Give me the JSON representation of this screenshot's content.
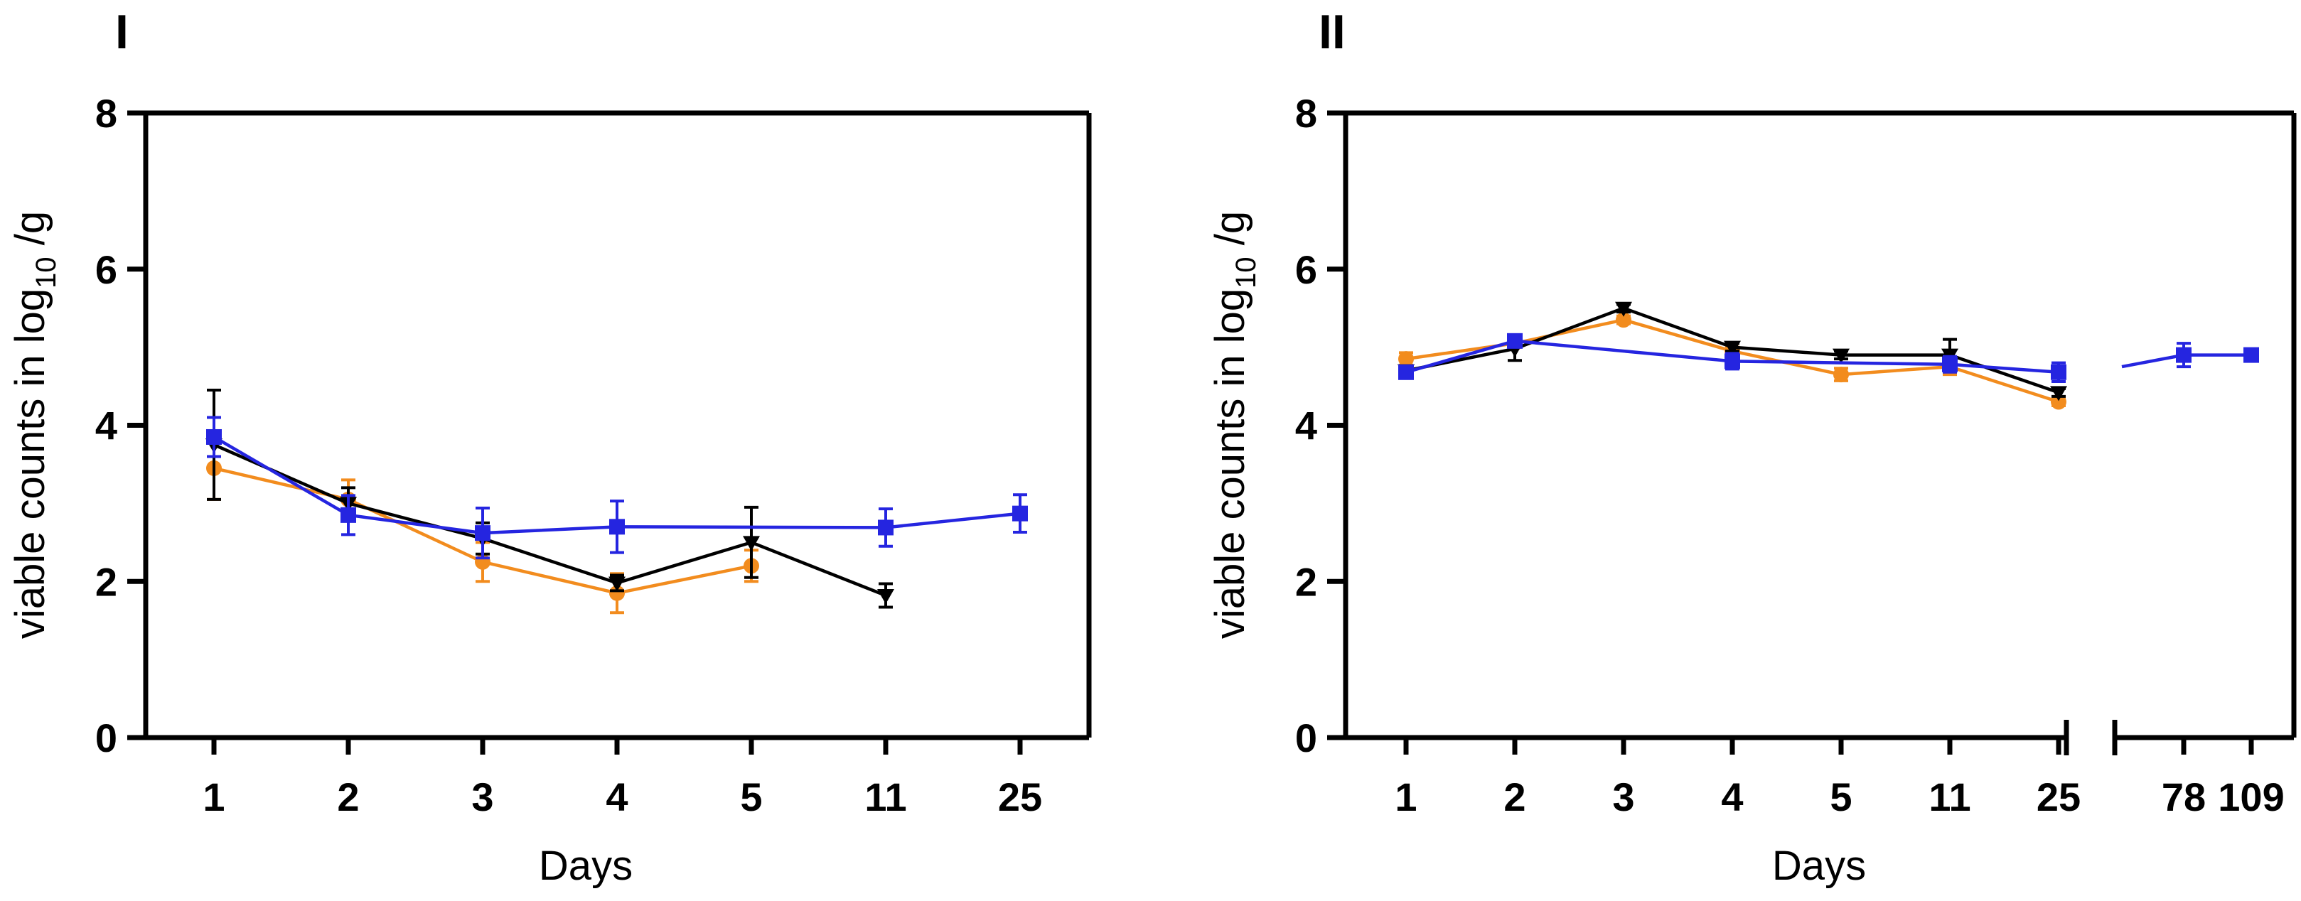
{
  "series_colors": {
    "orange": "#F28C1E",
    "black": "#000000",
    "blue": "#2525E0"
  },
  "chart_data": [
    {
      "type": "line",
      "panel_label": "I",
      "xlabel": "Days",
      "ylabel_main": "viable counts in log",
      "ylabel_sub": "10",
      "ylabel_end": " /g",
      "ylim": [
        0,
        8
      ],
      "yticks": [
        0,
        2,
        4,
        6,
        8
      ],
      "ytick_labels": [
        "0",
        "2",
        "4",
        "6",
        "8"
      ],
      "categories": [
        "1",
        "2",
        "3",
        "4",
        "5",
        "11",
        "25"
      ],
      "series": [
        {
          "name": "orange",
          "color": "#F28C1E",
          "marker": "circle",
          "values": [
            3.45,
            3.05,
            2.25,
            1.85,
            2.2,
            null,
            null
          ],
          "errors": [
            0.4,
            0.25,
            0.25,
            0.25,
            0.2,
            null,
            null
          ]
        },
        {
          "name": "black",
          "color": "#000000",
          "marker": "triangle-down",
          "values": [
            3.75,
            3.0,
            2.55,
            1.98,
            2.5,
            1.82,
            null
          ],
          "errors": [
            0.7,
            0.2,
            0.2,
            0.1,
            0.45,
            0.15,
            null
          ]
        },
        {
          "name": "blue",
          "color": "#2525E0",
          "marker": "square",
          "values": [
            3.85,
            2.85,
            2.62,
            2.7,
            null,
            2.69,
            2.87
          ],
          "errors": [
            0.25,
            0.25,
            0.32,
            0.33,
            null,
            0.24,
            0.24
          ]
        }
      ],
      "extra_points": [
        {
          "series": "blue",
          "x_between": [
            "5",
            "11"
          ],
          "value": 2.7
        }
      ]
    },
    {
      "type": "line",
      "panel_label": "II",
      "xlabel": "Days",
      "ylabel_main": "viable counts in log",
      "ylabel_sub": "10",
      "ylabel_end": " /g",
      "ylim": [
        0,
        8
      ],
      "yticks": [
        0,
        2,
        4,
        6,
        8
      ],
      "ytick_labels": [
        "0",
        "2",
        "4",
        "6",
        "8"
      ],
      "categories": [
        "1",
        "2",
        "3",
        "4",
        "5",
        "11",
        "25"
      ],
      "categories_break": [
        "78",
        "109"
      ],
      "axis_break": true,
      "series": [
        {
          "name": "orange",
          "color": "#F28C1E",
          "marker": "circle",
          "values": [
            4.85,
            5.05,
            5.35,
            4.95,
            4.65,
            4.75,
            4.3
          ],
          "errors": [
            0.08,
            0.05,
            0.05,
            0.05,
            0.08,
            0.1,
            0.05
          ]
        },
        {
          "name": "black",
          "color": "#000000",
          "marker": "triangle-down",
          "values": [
            4.7,
            4.98,
            5.5,
            5.0,
            4.9,
            4.9,
            4.42
          ],
          "errors": [
            0.05,
            0.15,
            0.05,
            0.05,
            0.05,
            0.2,
            0.05
          ]
        },
        {
          "name": "blue",
          "color": "#2525E0",
          "marker": "square",
          "values": [
            4.68,
            5.08,
            null,
            4.82,
            null,
            4.78,
            4.68
          ],
          "errors": [
            0.06,
            0.06,
            null,
            0.1,
            null,
            0.1,
            0.12
          ]
        }
      ],
      "break_series": [
        {
          "name": "blue",
          "color": "#2525E0",
          "marker": "square",
          "values": [
            4.9,
            4.9
          ],
          "errors": [
            0.15,
            0.05
          ]
        }
      ]
    }
  ]
}
